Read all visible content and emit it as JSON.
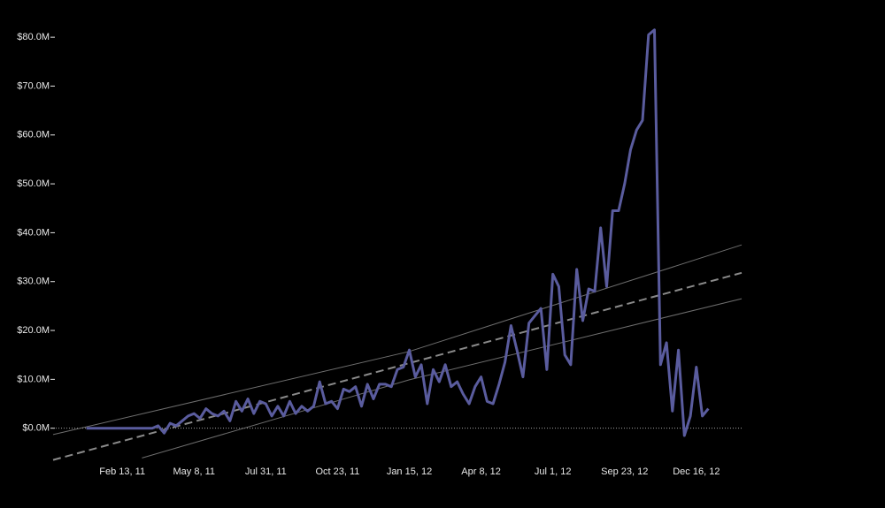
{
  "chart_data": {
    "type": "line",
    "x": [
      "2011-01-02",
      "2011-01-09",
      "2011-01-16",
      "2011-01-23",
      "2011-01-30",
      "2011-02-06",
      "2011-02-13",
      "2011-02-20",
      "2011-02-27",
      "2011-03-06",
      "2011-03-13",
      "2011-03-20",
      "2011-03-27",
      "2011-04-03",
      "2011-04-10",
      "2011-04-17",
      "2011-04-24",
      "2011-05-01",
      "2011-05-08",
      "2011-05-15",
      "2011-05-22",
      "2011-05-29",
      "2011-06-05",
      "2011-06-12",
      "2011-06-19",
      "2011-06-26",
      "2011-07-03",
      "2011-07-10",
      "2011-07-17",
      "2011-07-24",
      "2011-07-31",
      "2011-08-07",
      "2011-08-14",
      "2011-08-21",
      "2011-08-28",
      "2011-09-04",
      "2011-09-11",
      "2011-09-18",
      "2011-09-25",
      "2011-10-02",
      "2011-10-09",
      "2011-10-16",
      "2011-10-23",
      "2011-10-30",
      "2011-11-06",
      "2011-11-13",
      "2011-11-20",
      "2011-11-27",
      "2011-12-04",
      "2011-12-11",
      "2011-12-18",
      "2011-12-25",
      "2012-01-01",
      "2012-01-08",
      "2012-01-15",
      "2012-01-22",
      "2012-01-29",
      "2012-02-05",
      "2012-02-12",
      "2012-02-19",
      "2012-02-26",
      "2012-03-04",
      "2012-03-11",
      "2012-03-18",
      "2012-03-25",
      "2012-04-01",
      "2012-04-08",
      "2012-04-15",
      "2012-04-22",
      "2012-04-29",
      "2012-05-06",
      "2012-05-13",
      "2012-05-20",
      "2012-05-27",
      "2012-06-03",
      "2012-06-10",
      "2012-06-17",
      "2012-06-24",
      "2012-07-01",
      "2012-07-08",
      "2012-07-15",
      "2012-07-22",
      "2012-07-29",
      "2012-08-05",
      "2012-08-12",
      "2012-08-19",
      "2012-08-26",
      "2012-09-02",
      "2012-09-09",
      "2012-09-16",
      "2012-09-23",
      "2012-09-30",
      "2012-10-07",
      "2012-10-14",
      "2012-10-21",
      "2012-10-28",
      "2012-11-04",
      "2012-11-11",
      "2012-11-18",
      "2012-11-25",
      "2012-12-02",
      "2012-12-09",
      "2012-12-16",
      "2012-12-23",
      "2012-12-30"
    ],
    "series": [
      {
        "color": "#5a5c9e",
        "values": [
          0,
          0,
          0,
          0,
          0,
          0,
          0,
          0,
          0,
          0,
          0,
          0,
          0.5,
          -1,
          1,
          0.5,
          1.5,
          2.5,
          3,
          2,
          4,
          3,
          2.5,
          3.5,
          1.5,
          5.5,
          3.5,
          6,
          3,
          5.5,
          5,
          2.5,
          4.5,
          2.5,
          5.5,
          3,
          4.5,
          3.5,
          4.5,
          9.5,
          5,
          5.5,
          4,
          8,
          7.5,
          8.5,
          4.5,
          9,
          6,
          9,
          9,
          8.5,
          12,
          12.5,
          16,
          10.5,
          13,
          5,
          12,
          9.5,
          13,
          8.5,
          9.5,
          7,
          5,
          8.5,
          10.5,
          5.5,
          5,
          9,
          13.5,
          21,
          16,
          10.5,
          21.5,
          23,
          24.5,
          12,
          31.5,
          29,
          15,
          13,
          32.5,
          22,
          28.5,
          28,
          41,
          29,
          44.5,
          44.5,
          50,
          57,
          61,
          63,
          80.5,
          81.5,
          13,
          17.5,
          3.5,
          16,
          -1.5,
          2.5,
          12.5,
          2.5,
          4
        ]
      }
    ],
    "trend": {
      "x": [
        "2010-11-24",
        "2013-02-07"
      ],
      "values": [
        -6.5,
        31.8
      ],
      "color": "#8a8a8a"
    },
    "upper_band": {
      "x": [
        "2010-11-24",
        "2012-01-15",
        "2013-02-07"
      ],
      "values": [
        -1.3,
        15.7,
        37.5
      ],
      "color": "#6e6e6e"
    },
    "lower_band": {
      "x": [
        "2011-03-08",
        "2012-01-15",
        "2013-02-07"
      ],
      "values": [
        -6.1,
        9.9,
        26.5
      ],
      "color": "#6e6e6e"
    },
    "reference_line": 0,
    "xlim": [
      "2010-11-24",
      "2013-02-07"
    ],
    "xticks": [
      {
        "value": "2011-02-13",
        "label": "Feb 13, 11"
      },
      {
        "value": "2011-05-08",
        "label": "May 8, 11"
      },
      {
        "value": "2011-07-31",
        "label": "Jul 31, 11"
      },
      {
        "value": "2011-10-23",
        "label": "Oct 23, 11"
      },
      {
        "value": "2012-01-15",
        "label": "Jan 15, 12"
      },
      {
        "value": "2012-04-08",
        "label": "Apr 8, 12"
      },
      {
        "value": "2012-07-01",
        "label": "Jul 1, 12"
      },
      {
        "value": "2012-09-23",
        "label": "Sep 23, 12"
      },
      {
        "value": "2012-12-16",
        "label": "Dec 16, 12"
      }
    ],
    "ylim": [
      -10,
      84
    ],
    "yticks": [
      {
        "value": 0,
        "label": "$0.0M"
      },
      {
        "value": 10,
        "label": "$10.0M"
      },
      {
        "value": 20,
        "label": "$20.0M"
      },
      {
        "value": 30,
        "label": "$30.0M"
      },
      {
        "value": 40,
        "label": "$40.0M"
      },
      {
        "value": 50,
        "label": "$50.0M"
      },
      {
        "value": 60,
        "label": "$60.0M"
      },
      {
        "value": 70,
        "label": "$70.0M"
      },
      {
        "value": 80,
        "label": "$80.0M"
      }
    ],
    "grid": false
  }
}
